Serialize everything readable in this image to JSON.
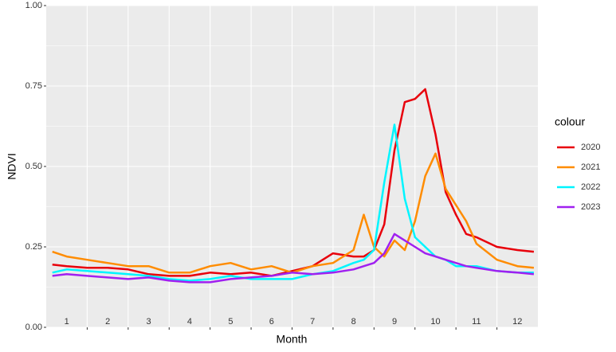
{
  "chart_data": {
    "type": "line",
    "x_label": "Month",
    "y_label": "NDVI",
    "legend_title": "colour",
    "x": [
      0.15,
      0.5,
      1,
      1.5,
      2,
      2.5,
      3,
      3.5,
      4,
      4.5,
      5,
      5.5,
      6,
      6.5,
      7,
      7.5,
      7.75,
      8,
      8.25,
      8.5,
      8.75,
      9,
      9.25,
      9.5,
      9.75,
      10,
      10.25,
      10.5,
      11,
      11.5,
      11.9
    ],
    "series": [
      {
        "name": "2020",
        "color": "#e8000b",
        "values": [
          0.195,
          0.19,
          0.185,
          0.185,
          0.18,
          0.165,
          0.16,
          0.16,
          0.17,
          0.165,
          0.17,
          0.16,
          0.175,
          0.19,
          0.23,
          0.22,
          0.22,
          0.24,
          0.32,
          0.55,
          0.7,
          0.71,
          0.74,
          0.6,
          0.42,
          0.35,
          0.29,
          0.28,
          0.25,
          0.24,
          0.235
        ]
      },
      {
        "name": "2021",
        "color": "#ff8c00",
        "values": [
          0.235,
          0.22,
          0.21,
          0.2,
          0.19,
          0.19,
          0.17,
          0.17,
          0.19,
          0.2,
          0.18,
          0.19,
          0.17,
          0.19,
          0.2,
          0.24,
          0.35,
          0.25,
          0.22,
          0.27,
          0.24,
          0.33,
          0.47,
          0.54,
          0.43,
          0.38,
          0.33,
          0.26,
          0.21,
          0.19,
          0.185
        ]
      },
      {
        "name": "2022",
        "color": "#00f5ff",
        "values": [
          0.17,
          0.18,
          0.175,
          0.17,
          0.165,
          0.16,
          0.15,
          0.145,
          0.15,
          0.16,
          0.15,
          0.15,
          0.15,
          0.165,
          0.175,
          0.2,
          0.21,
          0.24,
          0.45,
          0.63,
          0.4,
          0.28,
          0.25,
          0.22,
          0.21,
          0.19,
          0.19,
          0.19,
          0.175,
          0.17,
          0.17
        ]
      },
      {
        "name": "2023",
        "color": "#a020f0",
        "values": [
          0.16,
          0.165,
          0.16,
          0.155,
          0.15,
          0.155,
          0.145,
          0.14,
          0.14,
          0.15,
          0.155,
          0.16,
          0.17,
          0.165,
          0.17,
          0.18,
          0.19,
          0.2,
          0.23,
          0.29,
          0.27,
          0.25,
          0.23,
          0.22,
          0.21,
          0.2,
          0.19,
          0.185,
          0.175,
          0.17,
          0.165
        ]
      }
    ],
    "xlim": [
      0,
      12
    ],
    "xticks": [
      1,
      2,
      3,
      4,
      5,
      6,
      7,
      8,
      9,
      10,
      11
    ],
    "month_labels": [
      "1",
      "2",
      "3",
      "4",
      "5",
      "6",
      "7",
      "8",
      "9",
      "10",
      "11",
      "12"
    ],
    "ylim": [
      0,
      1
    ],
    "yticks": [
      {
        "value": 0,
        "label": "0.00"
      },
      {
        "value": 0.25,
        "label": "0.25"
      },
      {
        "value": 0.5,
        "label": "0.50"
      },
      {
        "value": 0.75,
        "label": "0.75"
      },
      {
        "value": 1,
        "label": "1.00"
      }
    ],
    "grid": true
  }
}
